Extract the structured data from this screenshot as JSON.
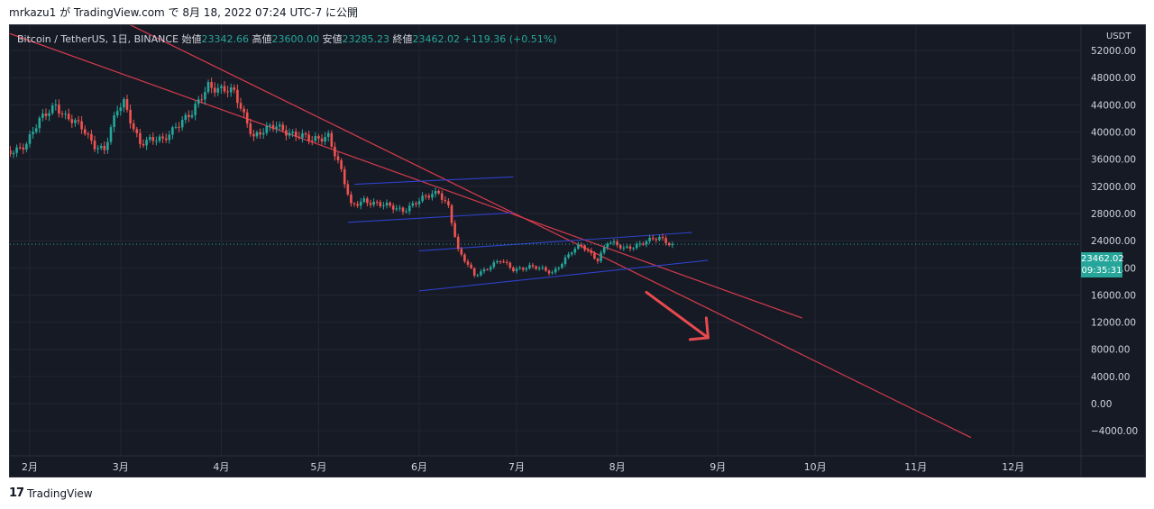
{
  "caption": "mrkazu1 が TradingView.com で 8月 18, 2022 07:24 UTC-7 に公開",
  "footer": {
    "logo": "17",
    "text": "TradingView"
  },
  "legend": {
    "symbol": "Bitcoin / TetherUS, 1日, BINANCE",
    "open_label": "始値",
    "open": "23342.66",
    "high_label": "高値",
    "high": "23600.00",
    "low_label": "安値",
    "low": "23285.23",
    "close_label": "終値",
    "close": "23462.02",
    "change": "+119.36 (+0.51%)"
  },
  "price_axis": {
    "currency": "USDT",
    "current_price": "23462.02",
    "countdown": "09:35:31"
  },
  "colors": {
    "background": "#161a25",
    "up": "#26a69a",
    "down": "#ef5350",
    "trendline": "#d83b4c",
    "channel": "#2f41c9",
    "arrow": "#e84a4f"
  },
  "chart_data": {
    "type": "candlestick",
    "y_unit": "USDT",
    "ylim": [
      -6000,
      54000
    ],
    "y_ticks": [
      52000,
      48000,
      44000,
      40000,
      36000,
      32000,
      28000,
      24000,
      20000,
      16000,
      12000,
      8000,
      4000,
      0,
      -4000
    ],
    "y_tick_labels": [
      "52000.00",
      "48000.00",
      "44000.00",
      "40000.00",
      "36000.00",
      "32000.00",
      "28000.00",
      "24000.00",
      "20000.00",
      "16000.00",
      "12000.00",
      "8000.00",
      "4000.00",
      "0.00",
      "−4000.00"
    ],
    "x_start": "2022-01-20",
    "x_end": "2022-12-31",
    "x_ticks": [
      {
        "date": "2022-02-01",
        "label": "2月"
      },
      {
        "date": "2022-03-01",
        "label": "3月"
      },
      {
        "date": "2022-04-01",
        "label": "4月"
      },
      {
        "date": "2022-05-01",
        "label": "5月"
      },
      {
        "date": "2022-06-01",
        "label": "6月"
      },
      {
        "date": "2022-07-01",
        "label": "7月"
      },
      {
        "date": "2022-08-01",
        "label": "8月"
      },
      {
        "date": "2022-09-01",
        "label": "9月"
      },
      {
        "date": "2022-10-01",
        "label": "10月"
      },
      {
        "date": "2022-11-01",
        "label": "11月"
      },
      {
        "date": "2022-12-01",
        "label": "12月"
      }
    ],
    "close_path": [
      [
        "2022-01-20",
        38000
      ],
      [
        "2022-01-25",
        36800
      ],
      [
        "2022-01-31",
        38400
      ],
      [
        "2022-02-04",
        41500
      ],
      [
        "2022-02-09",
        44200
      ],
      [
        "2022-02-12",
        42300
      ],
      [
        "2022-02-17",
        40500
      ],
      [
        "2022-02-21",
        38200
      ],
      [
        "2022-02-24",
        37500
      ],
      [
        "2022-02-28",
        43100
      ],
      [
        "2022-03-02",
        44300
      ],
      [
        "2022-03-07",
        38500
      ],
      [
        "2022-03-14",
        38800
      ],
      [
        "2022-03-18",
        41100
      ],
      [
        "2022-03-23",
        42500
      ],
      [
        "2022-03-28",
        47100
      ],
      [
        "2022-04-01",
        46300
      ],
      [
        "2022-04-05",
        45600
      ],
      [
        "2022-04-11",
        39500
      ],
      [
        "2022-04-18",
        40800
      ],
      [
        "2022-04-25",
        39500
      ],
      [
        "2022-04-29",
        38600
      ],
      [
        "2022-05-04",
        39700
      ],
      [
        "2022-05-08",
        34100
      ],
      [
        "2022-05-11",
        29000
      ],
      [
        "2022-05-15",
        30100
      ],
      [
        "2022-05-20",
        29200
      ],
      [
        "2022-05-27",
        28600
      ],
      [
        "2022-06-01",
        29800
      ],
      [
        "2022-06-07",
        31300
      ],
      [
        "2022-06-10",
        29100
      ],
      [
        "2022-06-13",
        22400
      ],
      [
        "2022-06-18",
        19000
      ],
      [
        "2022-06-22",
        20000
      ],
      [
        "2022-06-26",
        21000
      ],
      [
        "2022-06-30",
        19800
      ],
      [
        "2022-07-05",
        20200
      ],
      [
        "2022-07-12",
        19300
      ],
      [
        "2022-07-18",
        22400
      ],
      [
        "2022-07-21",
        23200
      ],
      [
        "2022-07-26",
        21300
      ],
      [
        "2022-07-29",
        23800
      ],
      [
        "2022-08-03",
        22800
      ],
      [
        "2022-08-10",
        23900
      ],
      [
        "2022-08-14",
        24300
      ],
      [
        "2022-08-18",
        23462
      ]
    ],
    "trendlines": [
      {
        "name": "descending-trendline-1",
        "points": [
          [
            "2022-01-20",
            55500
          ],
          [
            "2022-09-27",
            12600
          ]
        ]
      },
      {
        "name": "descending-trendline-2",
        "points": [
          [
            "2022-03-03",
            56000
          ],
          [
            "2022-11-18",
            -5000
          ]
        ]
      }
    ],
    "channels": [
      {
        "name": "upper-channel-top",
        "points": [
          [
            "2022-05-12",
            32300
          ],
          [
            "2022-06-30",
            33400
          ]
        ]
      },
      {
        "name": "upper-channel-bottom",
        "points": [
          [
            "2022-05-10",
            26700
          ],
          [
            "2022-06-30",
            28100
          ]
        ]
      },
      {
        "name": "lower-channel-top",
        "points": [
          [
            "2022-06-01",
            22500
          ],
          [
            "2022-08-24",
            25200
          ]
        ]
      },
      {
        "name": "lower-channel-bottom",
        "points": [
          [
            "2022-06-01",
            16600
          ],
          [
            "2022-08-29",
            21100
          ]
        ]
      }
    ],
    "arrow": {
      "from": [
        "2022-08-10",
        16400
      ],
      "to": [
        "2022-08-29",
        9700
      ]
    },
    "current_price": 23462.02
  }
}
